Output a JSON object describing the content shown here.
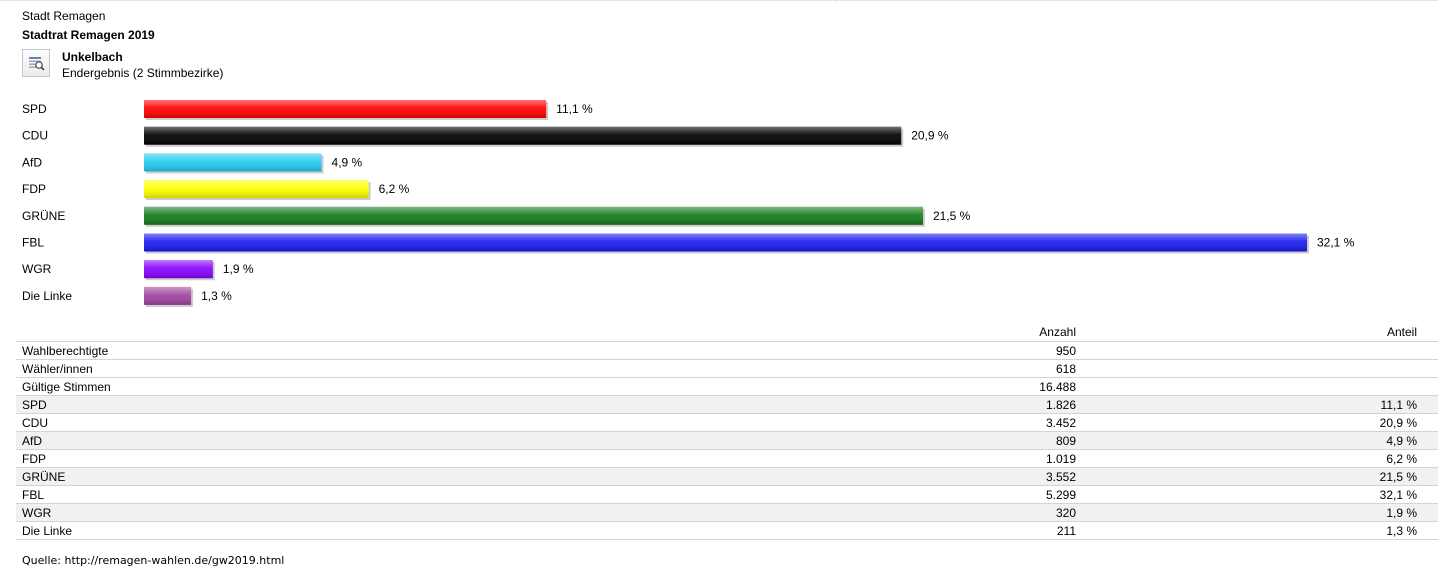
{
  "header": {
    "municipality": "Stadt Remagen",
    "election": "Stadtrat Remagen 2019",
    "district": "Unkelbach",
    "result_status": "Endergebnis (2 Stimmbezirke)",
    "info_icon": "magnifier-table-icon"
  },
  "chart_data": {
    "type": "bar",
    "orientation": "horizontal",
    "categories": [
      "SPD",
      "CDU",
      "AfD",
      "FDP",
      "GRÜNE",
      "FBL",
      "WGR",
      "Die Linke"
    ],
    "values": [
      11.1,
      20.9,
      4.9,
      6.2,
      21.5,
      32.1,
      1.9,
      1.3
    ],
    "value_labels": [
      "11,1 %",
      "20,9 %",
      "4,9 %",
      "6,2 %",
      "21,5 %",
      "32,1 %",
      "1,9 %",
      "1,3 %"
    ],
    "colors": [
      "#ff0000",
      "#000000",
      "#22ccf2",
      "#ffff00",
      "#157a1c",
      "#1a1aee",
      "#8800ff",
      "#a0449f"
    ],
    "xlim": [
      0,
      32.1
    ],
    "grid": false,
    "legend": "none"
  },
  "table": {
    "headers": {
      "count": "Anzahl",
      "share": "Anteil"
    },
    "rows": [
      {
        "label": "Wahlberechtigte",
        "count": "950",
        "share": ""
      },
      {
        "label": "Wähler/innen",
        "count": "618",
        "share": ""
      },
      {
        "label": "Gültige Stimmen",
        "count": "16.488",
        "share": ""
      },
      {
        "label": "SPD",
        "count": "1.826",
        "share": "11,1 %"
      },
      {
        "label": "CDU",
        "count": "3.452",
        "share": "20,9 %"
      },
      {
        "label": "AfD",
        "count": "809",
        "share": "4,9 %"
      },
      {
        "label": "FDP",
        "count": "1.019",
        "share": "6,2 %"
      },
      {
        "label": "GRÜNE",
        "count": "3.552",
        "share": "21,5 %"
      },
      {
        "label": "FBL",
        "count": "5.299",
        "share": "32,1 %"
      },
      {
        "label": "WGR",
        "count": "320",
        "share": "1,9 %"
      },
      {
        "label": "Die Linke",
        "count": "211",
        "share": "1,3 %"
      }
    ]
  },
  "source": "Quelle: http://remagen-wahlen.de/gw2019.html"
}
